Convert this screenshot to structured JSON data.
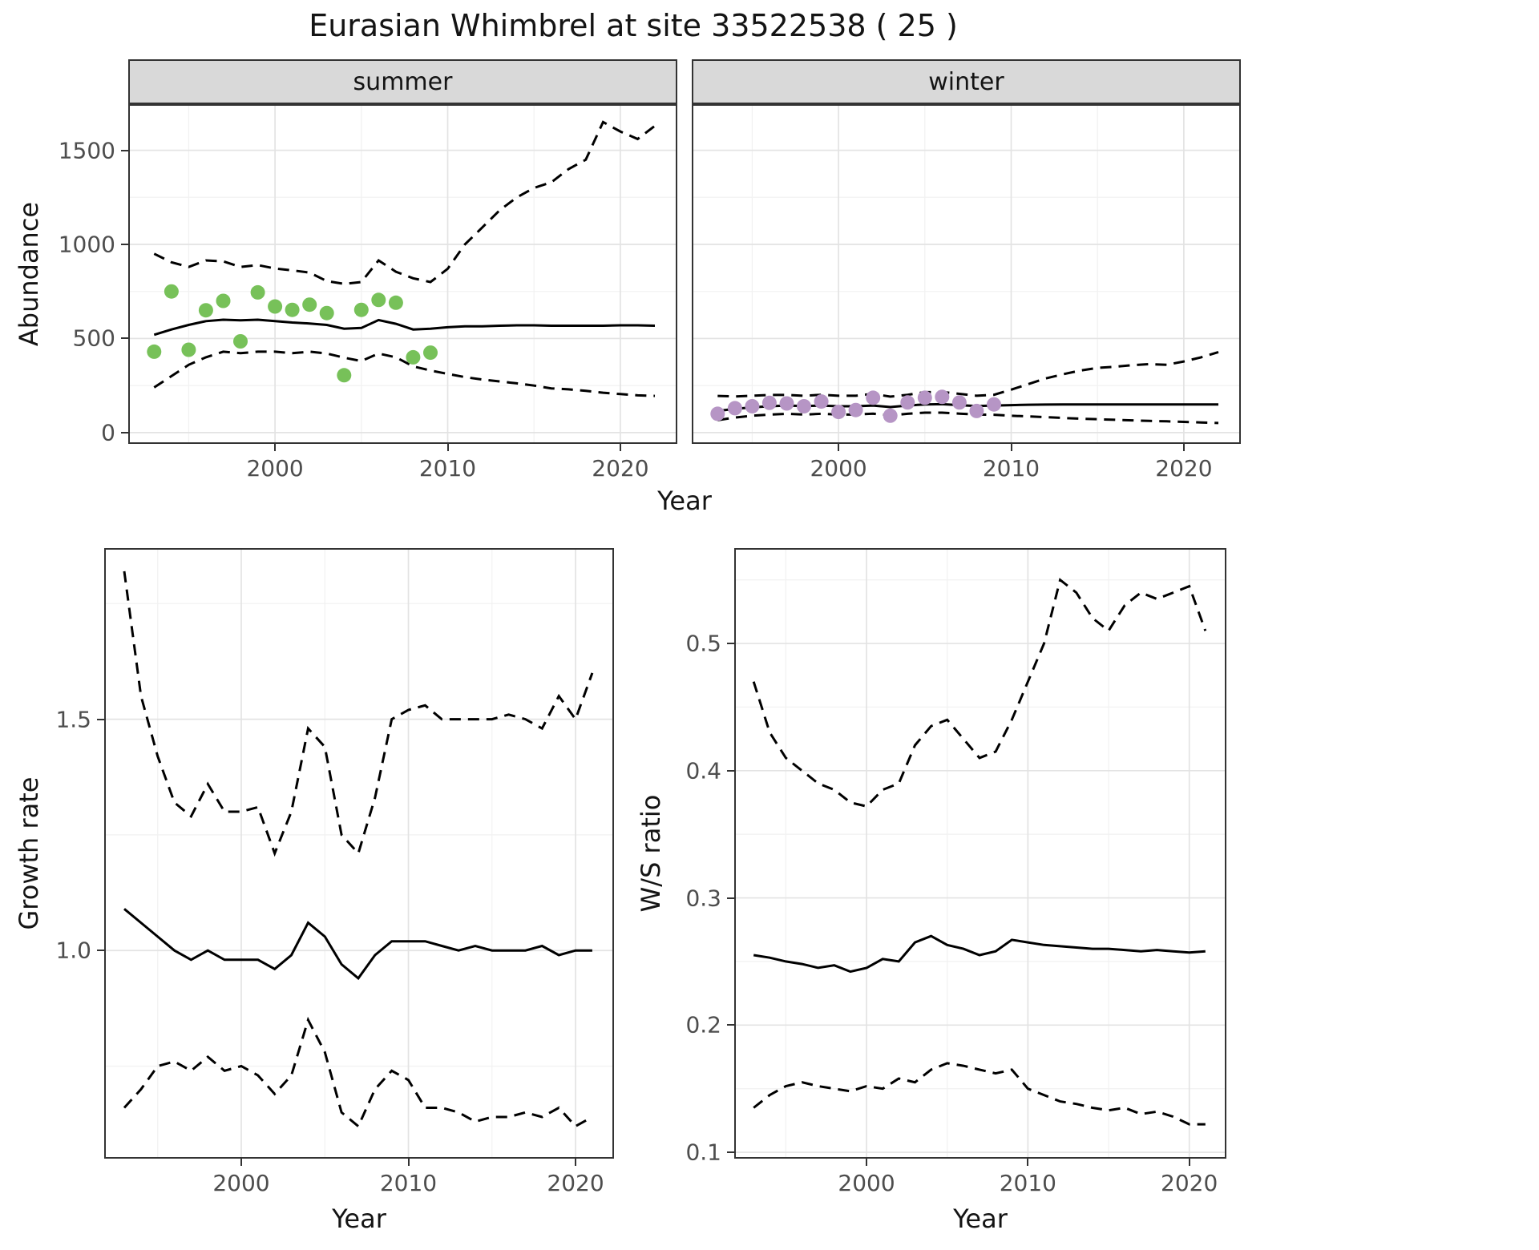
{
  "title": "Eurasian Whimbrel at site 33522538 ( 25 )",
  "colors": {
    "summer_points": "#77C159",
    "winter_points": "#B695C5",
    "line": "#000000",
    "grid_major": "#E3E3E3",
    "grid_minor": "#F2F2F2",
    "strip_bg": "#D9D9D9",
    "panel_border": "#333333",
    "tick_text": "#4D4D4D"
  },
  "chart_data": [
    {
      "id": "abundance",
      "type": "line",
      "ylabel": "Abundance",
      "xlabel": "Year",
      "xlim": [
        1991.5,
        2023.3
      ],
      "ylim": [
        -60,
        1745
      ],
      "xticks": [
        2000,
        2010,
        2020
      ],
      "xtick_labels": [
        "2000",
        "2010",
        "2020"
      ],
      "xminor": [
        1995,
        2005,
        2015
      ],
      "yticks": [
        0,
        500,
        1000,
        1500
      ],
      "ytick_labels": [
        "0",
        "500",
        "1000",
        "1500"
      ],
      "yminor": [
        250,
        750,
        1250,
        1750
      ],
      "facets": [
        {
          "label": "summer",
          "fit": {
            "x": [
              1993,
              1994,
              1995,
              1996,
              1997,
              1998,
              1999,
              2000,
              2001,
              2002,
              2003,
              2004,
              2005,
              2006,
              2007,
              2008,
              2009,
              2010,
              2011,
              2012,
              2013,
              2014,
              2015,
              2016,
              2017,
              2018,
              2019,
              2020,
              2021,
              2022
            ],
            "y": [
              520,
              548,
              572,
              592,
              600,
              597,
              600,
              592,
              585,
              580,
              572,
              552,
              556,
              598,
              578,
              548,
              552,
              560,
              565,
              565,
              568,
              570,
              570,
              568,
              568,
              568,
              568,
              570,
              570,
              568
            ]
          },
          "upper": {
            "x": [
              1993,
              1994,
              1995,
              1996,
              1997,
              1998,
              1999,
              2000,
              2001,
              2002,
              2003,
              2004,
              2005,
              2006,
              2007,
              2008,
              2009,
              2010,
              2011,
              2012,
              2013,
              2014,
              2015,
              2016,
              2017,
              2018,
              2019,
              2020,
              2021,
              2022
            ],
            "y": [
              950,
              905,
              880,
              915,
              910,
              880,
              890,
              872,
              862,
              850,
              805,
              790,
              800,
              915,
              855,
              820,
              800,
              870,
              1000,
              1090,
              1180,
              1250,
              1300,
              1330,
              1400,
              1450,
              1650,
              1600,
              1560,
              1630
            ]
          },
          "lower": {
            "x": [
              1993,
              1994,
              1995,
              1996,
              1997,
              1998,
              1999,
              2000,
              2001,
              2002,
              2003,
              2004,
              2005,
              2006,
              2007,
              2008,
              2009,
              2010,
              2011,
              2012,
              2013,
              2014,
              2015,
              2016,
              2017,
              2018,
              2019,
              2020,
              2021,
              2022
            ],
            "y": [
              240,
              300,
              360,
              400,
              430,
              422,
              430,
              430,
              422,
              430,
              420,
              398,
              380,
              420,
              400,
              352,
              330,
              312,
              295,
              282,
              272,
              262,
              250,
              235,
              230,
              222,
              212,
              205,
              198,
              195
            ]
          },
          "points": {
            "x": [
              1993,
              1994,
              1995,
              1996,
              1997,
              1998,
              1999,
              2000,
              2001,
              2002,
              2003,
              2004,
              2005,
              2006,
              2007,
              2008,
              2009
            ],
            "y": [
              430,
              750,
              440,
              650,
              700,
              485,
              745,
              670,
              652,
              680,
              635,
              305,
              652,
              705,
              690,
              400,
              425
            ]
          }
        },
        {
          "label": "winter",
          "fit": {
            "x": [
              1993,
              1994,
              1995,
              1996,
              1997,
              1998,
              1999,
              2000,
              2001,
              2002,
              2003,
              2004,
              2005,
              2006,
              2007,
              2008,
              2009,
              2010,
              2011,
              2012,
              2013,
              2014,
              2015,
              2016,
              2017,
              2018,
              2019,
              2020,
              2021,
              2022
            ],
            "y": [
              115,
              126,
              134,
              140,
              144,
              141,
              144,
              140,
              140,
              144,
              136,
              144,
              150,
              151,
              146,
              141,
              144,
              146,
              148,
              149,
              150,
              150,
              150,
              150,
              150,
              150,
              150,
              150,
              150,
              150
            ]
          },
          "upper": {
            "x": [
              1993,
              1994,
              1995,
              1996,
              1997,
              1998,
              1999,
              2000,
              2001,
              2002,
              2003,
              2004,
              2005,
              2006,
              2007,
              2008,
              2009,
              2010,
              2011,
              2012,
              2013,
              2014,
              2015,
              2016,
              2017,
              2018,
              2019,
              2020,
              2021,
              2022
            ],
            "y": [
              195,
              192,
              196,
              200,
              200,
              196,
              201,
              196,
              196,
              206,
              191,
              201,
              215,
              216,
              206,
              196,
              201,
              228,
              258,
              288,
              310,
              330,
              344,
              350,
              358,
              364,
              360,
              378,
              400,
              428
            ]
          },
          "lower": {
            "x": [
              1993,
              1994,
              1995,
              1996,
              1997,
              1998,
              1999,
              2000,
              2001,
              2002,
              2003,
              2004,
              2005,
              2006,
              2007,
              2008,
              2009,
              2010,
              2011,
              2012,
              2013,
              2014,
              2015,
              2016,
              2017,
              2018,
              2019,
              2020,
              2021,
              2022
            ],
            "y": [
              66,
              80,
              90,
              96,
              100,
              96,
              100,
              96,
              96,
              101,
              91,
              100,
              106,
              106,
              101,
              96,
              95,
              90,
              86,
              82,
              78,
              74,
              71,
              68,
              65,
              62,
              60,
              57,
              54,
              51
            ]
          },
          "points": {
            "x": [
              1993,
              1994,
              1995,
              1996,
              1997,
              1998,
              1999,
              2000,
              2001,
              2002,
              2003,
              2004,
              2005,
              2006,
              2007,
              2008,
              2009
            ],
            "y": [
              100,
              130,
              140,
              158,
              155,
              140,
              165,
              110,
              120,
              185,
              90,
              160,
              185,
              190,
              160,
              115,
              150
            ]
          }
        }
      ]
    },
    {
      "id": "growth_rate",
      "type": "line",
      "ylabel": "Growth rate",
      "xlabel": "Year",
      "xlim": [
        1991.8,
        2022.3
      ],
      "ylim": [
        0.55,
        1.87
      ],
      "xticks": [
        2000,
        2010,
        2020
      ],
      "xtick_labels": [
        "2000",
        "2010",
        "2020"
      ],
      "xminor": [
        1995,
        2005,
        2015
      ],
      "yticks": [
        1.0,
        1.5
      ],
      "ytick_labels": [
        "1.0",
        "1.5"
      ],
      "yminor": [
        0.75,
        1.25,
        1.75
      ],
      "fit": {
        "x": [
          1993,
          1994,
          1995,
          1996,
          1997,
          1998,
          1999,
          2000,
          2001,
          2002,
          2003,
          2004,
          2005,
          2006,
          2007,
          2008,
          2009,
          2010,
          2011,
          2012,
          2013,
          2014,
          2015,
          2016,
          2017,
          2018,
          2019,
          2020,
          2021
        ],
        "y": [
          1.09,
          1.06,
          1.03,
          1.0,
          0.98,
          1.0,
          0.98,
          0.98,
          0.98,
          0.96,
          0.99,
          1.06,
          1.03,
          0.97,
          0.94,
          0.99,
          1.02,
          1.02,
          1.02,
          1.01,
          1.0,
          1.01,
          1.0,
          1.0,
          1.0,
          1.01,
          0.99,
          1.0,
          1.0
        ]
      },
      "upper": {
        "x": [
          1993,
          1994,
          1995,
          1996,
          1997,
          1998,
          1999,
          2000,
          2001,
          2002,
          2003,
          2004,
          2005,
          2006,
          2007,
          2008,
          2009,
          2010,
          2011,
          2012,
          2013,
          2014,
          2015,
          2016,
          2017,
          2018,
          2019,
          2020,
          2021
        ],
        "y": [
          1.82,
          1.55,
          1.42,
          1.32,
          1.29,
          1.36,
          1.3,
          1.3,
          1.31,
          1.21,
          1.3,
          1.48,
          1.44,
          1.25,
          1.21,
          1.33,
          1.5,
          1.52,
          1.53,
          1.5,
          1.5,
          1.5,
          1.5,
          1.51,
          1.5,
          1.48,
          1.55,
          1.5,
          1.6
        ]
      },
      "lower": {
        "x": [
          1993,
          1994,
          1995,
          1996,
          1997,
          1998,
          1999,
          2000,
          2001,
          2002,
          2003,
          2004,
          2005,
          2006,
          2007,
          2008,
          2009,
          2010,
          2011,
          2012,
          2013,
          2014,
          2015,
          2016,
          2017,
          2018,
          2019,
          2020,
          2021
        ],
        "y": [
          0.66,
          0.7,
          0.75,
          0.76,
          0.74,
          0.77,
          0.74,
          0.75,
          0.73,
          0.69,
          0.73,
          0.85,
          0.78,
          0.65,
          0.62,
          0.7,
          0.74,
          0.72,
          0.66,
          0.66,
          0.65,
          0.63,
          0.64,
          0.64,
          0.65,
          0.64,
          0.66,
          0.62,
          0.64
        ]
      }
    },
    {
      "id": "ws_ratio",
      "type": "line",
      "ylabel": "W/S ratio",
      "xlabel": "Year",
      "xlim": [
        1991.8,
        2022.3
      ],
      "ylim": [
        0.095,
        0.575
      ],
      "xticks": [
        2000,
        2010,
        2020
      ],
      "xtick_labels": [
        "2000",
        "2010",
        "2020"
      ],
      "xminor": [
        1995,
        2005,
        2015
      ],
      "yticks": [
        0.1,
        0.2,
        0.3,
        0.4,
        0.5
      ],
      "ytick_labels": [
        "0.1",
        "0.2",
        "0.3",
        "0.4",
        "0.5"
      ],
      "yminor": [
        0.15,
        0.25,
        0.35,
        0.45,
        0.55
      ],
      "fit": {
        "x": [
          1993,
          1994,
          1995,
          1996,
          1997,
          1998,
          1999,
          2000,
          2001,
          2002,
          2003,
          2004,
          2005,
          2006,
          2007,
          2008,
          2009,
          2010,
          2011,
          2012,
          2013,
          2014,
          2015,
          2016,
          2017,
          2018,
          2019,
          2020,
          2021
        ],
        "y": [
          0.255,
          0.253,
          0.25,
          0.248,
          0.245,
          0.247,
          0.242,
          0.245,
          0.252,
          0.25,
          0.265,
          0.27,
          0.263,
          0.26,
          0.255,
          0.258,
          0.267,
          0.265,
          0.263,
          0.262,
          0.261,
          0.26,
          0.26,
          0.259,
          0.258,
          0.259,
          0.258,
          0.257,
          0.258
        ]
      },
      "upper": {
        "x": [
          1993,
          1994,
          1995,
          1996,
          1997,
          1998,
          1999,
          2000,
          2001,
          2002,
          2003,
          2004,
          2005,
          2006,
          2007,
          2008,
          2009,
          2010,
          2011,
          2012,
          2013,
          2014,
          2015,
          2016,
          2017,
          2018,
          2019,
          2020,
          2021
        ],
        "y": [
          0.47,
          0.43,
          0.41,
          0.4,
          0.39,
          0.385,
          0.375,
          0.372,
          0.385,
          0.39,
          0.42,
          0.435,
          0.44,
          0.425,
          0.41,
          0.415,
          0.44,
          0.47,
          0.5,
          0.55,
          0.54,
          0.52,
          0.51,
          0.53,
          0.54,
          0.535,
          0.54,
          0.545,
          0.51
        ]
      },
      "lower": {
        "x": [
          1993,
          1994,
          1995,
          1996,
          1997,
          1998,
          1999,
          2000,
          2001,
          2002,
          2003,
          2004,
          2005,
          2006,
          2007,
          2008,
          2009,
          2010,
          2011,
          2012,
          2013,
          2014,
          2015,
          2016,
          2017,
          2018,
          2019,
          2020,
          2021
        ],
        "y": [
          0.135,
          0.145,
          0.152,
          0.155,
          0.152,
          0.15,
          0.148,
          0.152,
          0.15,
          0.158,
          0.155,
          0.165,
          0.17,
          0.168,
          0.165,
          0.162,
          0.165,
          0.15,
          0.145,
          0.14,
          0.138,
          0.135,
          0.133,
          0.135,
          0.13,
          0.132,
          0.128,
          0.122,
          0.122
        ]
      }
    }
  ]
}
